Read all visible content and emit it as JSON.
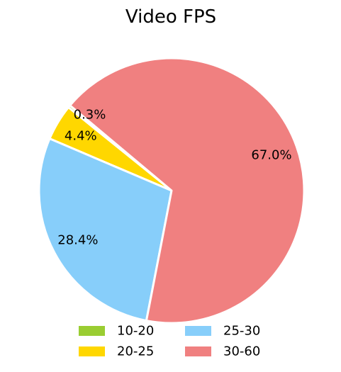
{
  "chart_data": {
    "type": "pie",
    "title": "Video FPS",
    "categories": [
      "10-20",
      "20-25",
      "25-30",
      "30-60"
    ],
    "values": [
      0.3,
      4.4,
      28.4,
      67.0
    ],
    "labels": [
      "0.3%",
      "4.4%",
      "28.4%",
      "67.0%"
    ],
    "colors": [
      "#9acd32",
      "#ffd700",
      "#87cefa",
      "#f08080"
    ],
    "start_angle_deg": 140,
    "direction": "counterclockwise",
    "legend": {
      "position": "bottom",
      "columns": 2,
      "entries": [
        "10-20",
        "20-25",
        "25-30",
        "30-60"
      ]
    }
  }
}
